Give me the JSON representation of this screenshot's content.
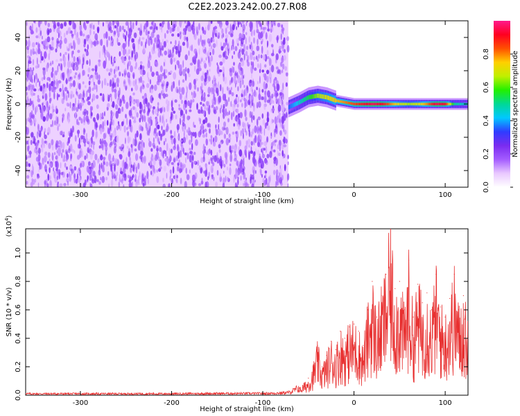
{
  "figure_title": "C2E2.2023.242.00.27.R08",
  "chart_data": [
    {
      "type": "heatmap",
      "xlabel": "Height of straight line (km)",
      "ylabel": "Frequency (Hz)",
      "xlim": [
        -360,
        125
      ],
      "ylim": [
        -50,
        50
      ],
      "xticks": [
        -300,
        -200,
        -100,
        0,
        100
      ],
      "yticks": [
        -40,
        -20,
        0,
        20,
        40
      ],
      "noise_region": {
        "x": [
          -360,
          -72
        ],
        "y": [
          -50,
          50
        ],
        "amplitude": [
          0.1,
          0.25
        ]
      },
      "signal_trace": {
        "x": [
          -72,
          -60,
          -50,
          -40,
          -30,
          -20,
          -10,
          0,
          10,
          20,
          30,
          40,
          50,
          60,
          70,
          80,
          90,
          100,
          110,
          125
        ],
        "frequency": [
          -2,
          1,
          4,
          5,
          4,
          2,
          1,
          0,
          0,
          0,
          0,
          0,
          0,
          0,
          0,
          0,
          0,
          0,
          0,
          0
        ],
        "peak_amplitude": [
          0.35,
          0.45,
          0.55,
          0.65,
          0.7,
          0.75,
          0.8,
          0.85,
          0.9,
          0.95,
          0.92,
          0.8,
          0.7,
          0.65,
          0.7,
          0.8,
          0.95,
          0.9,
          0.5,
          0.45
        ]
      },
      "colorbar": {
        "label": "Normalized spectral amplitude",
        "range": [
          0,
          1
        ],
        "ticks": [
          "0.0",
          "0.2",
          "0.4",
          "0.6",
          "0.8"
        ],
        "colors": [
          "#ffffff",
          "#e9c8ff",
          "#a45cff",
          "#7a2cf0",
          "#2f3cff",
          "#00c8ff",
          "#00d896",
          "#22f000",
          "#c0f000",
          "#ffd000",
          "#ff5000",
          "#ff0020",
          "#ff1a8c"
        ]
      }
    },
    {
      "type": "line",
      "xlabel": "Height of straight line (km)",
      "ylabel": "SNR (10 * v/v)",
      "scale_label": "(x10",
      "scale_exponent": "4",
      "scale_close": ")",
      "xlim": [
        -360,
        125
      ],
      "ylim": [
        0,
        1.17
      ],
      "xticks": [
        -300,
        -200,
        -100,
        0,
        100
      ],
      "yticks": [
        "0.0",
        "0.2",
        "0.4",
        "0.6",
        "0.8",
        "1.0"
      ],
      "color": "#e83030",
      "series": [
        {
          "x": [
            -360,
            -300,
            -250,
            -200,
            -150,
            -100,
            -80,
            -70,
            -60,
            -55,
            -50,
            -45,
            -40,
            -35,
            -30,
            -25,
            -20,
            -15,
            -10,
            -5,
            0,
            5,
            10,
            15,
            20,
            25,
            30,
            35,
            40,
            45,
            50,
            55,
            60,
            65,
            70,
            75,
            80,
            85,
            90,
            95,
            100,
            105,
            110,
            115,
            120,
            125
          ],
          "values": [
            0.01,
            0.01,
            0.01,
            0.01,
            0.012,
            0.012,
            0.015,
            0.02,
            0.05,
            0.08,
            0.12,
            0.2,
            0.35,
            0.2,
            0.28,
            0.38,
            0.32,
            0.45,
            0.4,
            0.48,
            0.5,
            0.45,
            0.35,
            0.6,
            0.8,
            0.55,
            0.7,
            0.85,
            1.17,
            0.75,
            0.8,
            0.6,
            0.95,
            0.55,
            0.78,
            0.65,
            0.72,
            0.6,
            0.85,
            0.62,
            0.55,
            0.68,
            0.85,
            0.6,
            0.7,
            0.52
          ]
        }
      ]
    }
  ]
}
